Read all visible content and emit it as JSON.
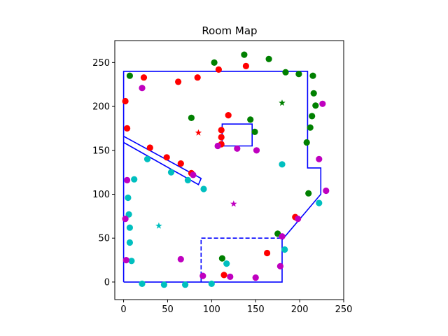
{
  "chart_data": {
    "type": "scatter",
    "title": "Room Map",
    "xlim": [
      -10,
      250
    ],
    "ylim": [
      -20,
      275
    ],
    "xticks": [
      0,
      50,
      100,
      150,
      200,
      250
    ],
    "yticks": [
      0,
      50,
      100,
      150,
      200,
      250
    ],
    "grid": false,
    "colors": {
      "wall": "#0000ff",
      "red": "#ff0000",
      "green": "#008000",
      "cyan": "#00bfbf",
      "magenta": "#bf00bf"
    },
    "walls": [
      {
        "style": "solid",
        "points": [
          [
            0,
            0
          ],
          [
            0,
            240
          ],
          [
            209,
            240
          ],
          [
            209,
            130
          ],
          [
            224,
            130
          ],
          [
            224,
            100
          ],
          [
            180,
            48
          ],
          [
            180,
            0
          ],
          [
            0,
            0
          ]
        ]
      },
      {
        "style": "solid",
        "points": [
          [
            112,
            155
          ],
          [
            112,
            180
          ],
          [
            146,
            180
          ],
          [
            146,
            155
          ],
          [
            112,
            155
          ]
        ]
      },
      {
        "style": "solid",
        "points": [
          [
            0,
            166
          ],
          [
            88,
            118
          ],
          [
            85,
            111
          ],
          [
            0,
            159
          ]
        ]
      },
      {
        "style": "dashed",
        "points": [
          [
            88,
            0
          ],
          [
            88,
            50
          ],
          [
            180,
            50
          ]
        ]
      }
    ],
    "stars": [
      {
        "color": "red",
        "x": 85,
        "y": 170
      },
      {
        "color": "green",
        "x": 180,
        "y": 204
      },
      {
        "color": "magenta",
        "x": 125,
        "y": 89
      },
      {
        "color": "cyan",
        "x": 40,
        "y": 64
      }
    ],
    "series": [
      {
        "color": "red",
        "points": [
          [
            2,
            206
          ],
          [
            4,
            175
          ],
          [
            23,
            233
          ],
          [
            30,
            153
          ],
          [
            49,
            142
          ],
          [
            62,
            228
          ],
          [
            65,
            135
          ],
          [
            77,
            124
          ],
          [
            84,
            233
          ],
          [
            108,
            242
          ],
          [
            111,
            173
          ],
          [
            111,
            165
          ],
          [
            111,
            157
          ],
          [
            119,
            190
          ],
          [
            139,
            246
          ],
          [
            114,
            8
          ],
          [
            163,
            33
          ],
          [
            195,
            74
          ]
        ]
      },
      {
        "color": "green",
        "points": [
          [
            7,
            235
          ],
          [
            77,
            187
          ],
          [
            103,
            250
          ],
          [
            137,
            259
          ],
          [
            165,
            254
          ],
          [
            144,
            185
          ],
          [
            149,
            171
          ],
          [
            184,
            239
          ],
          [
            199,
            237
          ],
          [
            215,
            235
          ],
          [
            216,
            215
          ],
          [
            218,
            201
          ],
          [
            214,
            189
          ],
          [
            212,
            176
          ],
          [
            208,
            159
          ],
          [
            210,
            101
          ],
          [
            175,
            55
          ],
          [
            112,
            27
          ]
        ]
      },
      {
        "color": "cyan",
        "points": [
          [
            12,
            117
          ],
          [
            5,
            96
          ],
          [
            6,
            77
          ],
          [
            7,
            62
          ],
          [
            7,
            45
          ],
          [
            9,
            24
          ],
          [
            27,
            140
          ],
          [
            54,
            125
          ],
          [
            73,
            116
          ],
          [
            91,
            106
          ],
          [
            180,
            134
          ],
          [
            222,
            90
          ],
          [
            183,
            37
          ],
          [
            117,
            21
          ],
          [
            21,
            -2
          ],
          [
            46,
            -3
          ],
          [
            70,
            -3
          ],
          [
            100,
            -2
          ]
        ]
      },
      {
        "color": "magenta",
        "points": [
          [
            21,
            221
          ],
          [
            4,
            116
          ],
          [
            2,
            72
          ],
          [
            3,
            25
          ],
          [
            65,
            26
          ],
          [
            90,
            7
          ],
          [
            121,
            6
          ],
          [
            150,
            5
          ],
          [
            178,
            18
          ],
          [
            180,
            52
          ],
          [
            198,
            72
          ],
          [
            107,
            155
          ],
          [
            129,
            152
          ],
          [
            151,
            150
          ],
          [
            222,
            140
          ],
          [
            226,
            203
          ],
          [
            230,
            104
          ],
          [
            79,
            122
          ]
        ]
      }
    ]
  }
}
